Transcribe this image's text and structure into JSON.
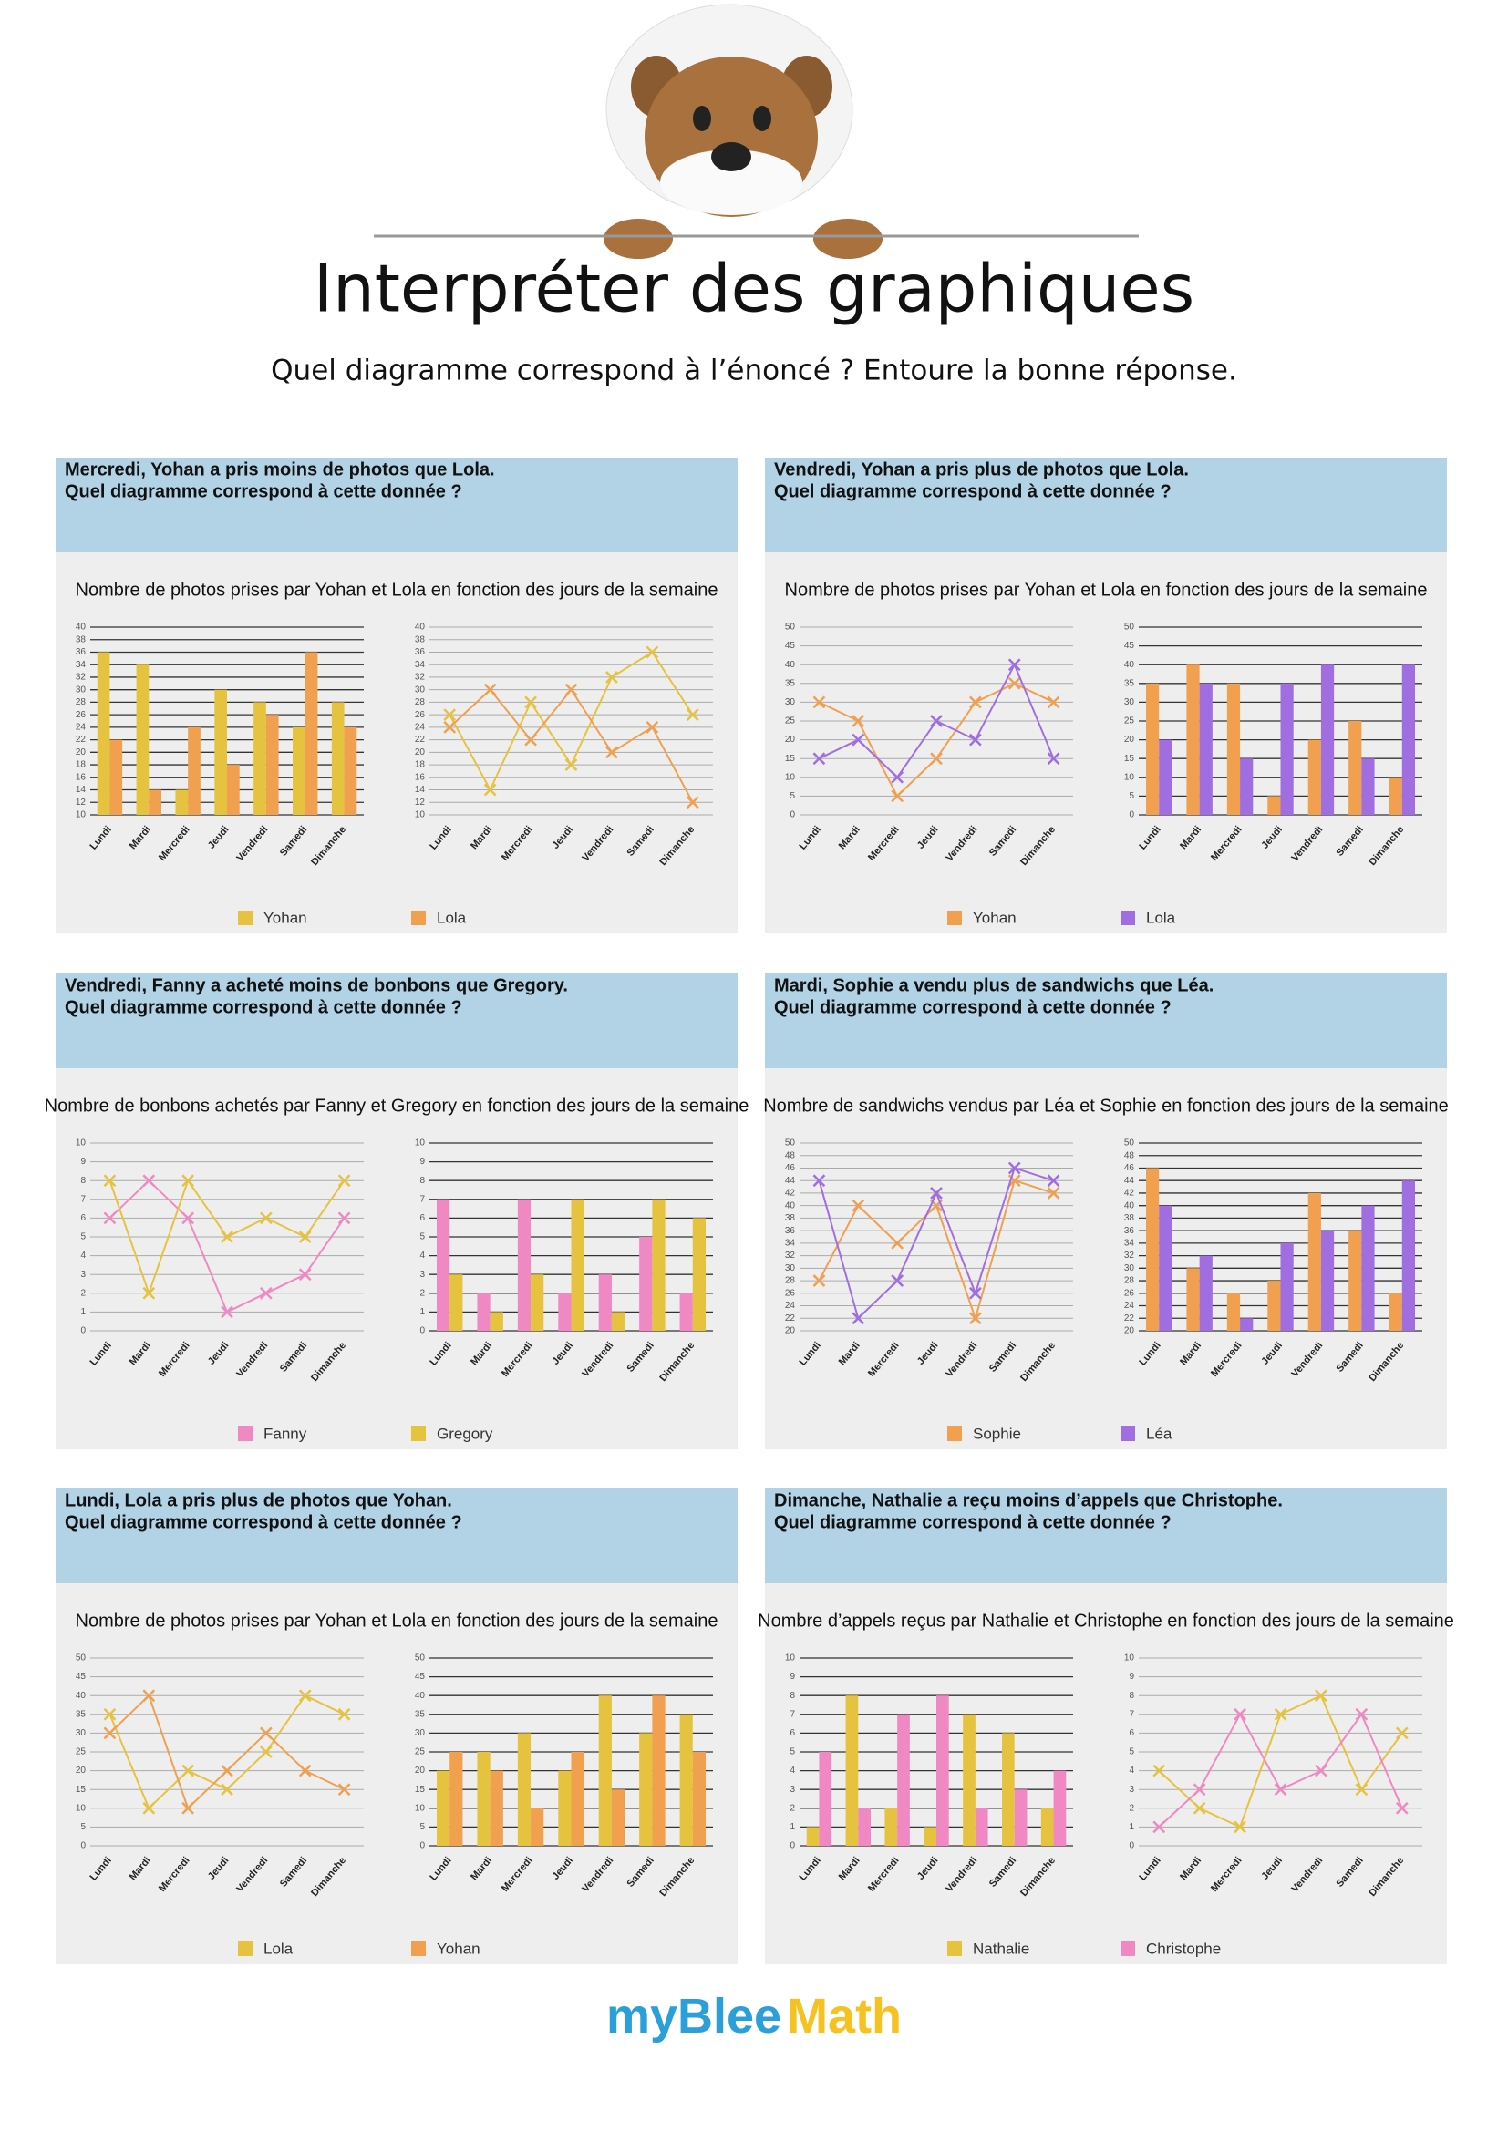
{
  "header": {
    "title": "Interpréter des graphiques",
    "subtitle": "Quel diagramme correspond à l’énoncé ? Entoure la bonne réponse."
  },
  "panels": [
    {
      "statement": [
        "Mercredi, Yohan a pris moins de photos que Lola.",
        "Quel diagramme correspond à cette donnée ?"
      ],
      "chart_title": "Nombre de photos prises par Yohan et Lola en fonction des jours de la semaine",
      "series": [
        {
          "name": "Yohan",
          "color": "#e6c33f"
        },
        {
          "name": "Lola",
          "color": "#f0a04e"
        }
      ],
      "charts": [
        {
          "type": "bar",
          "categories": [
            "Lundi",
            "Mardi",
            "Mercredi",
            "Jeudi",
            "Vendredi",
            "Samedi",
            "Dimanche"
          ],
          "ylim": [
            10,
            40
          ],
          "yticks": [
            10,
            12,
            14,
            16,
            18,
            20,
            22,
            24,
            26,
            28,
            30,
            32,
            34,
            36,
            38,
            40
          ],
          "values": [
            [
              36,
              34,
              14,
              30,
              28,
              24,
              28
            ],
            [
              22,
              14,
              24,
              18,
              26,
              36,
              24
            ]
          ]
        },
        {
          "type": "line",
          "categories": [
            "Lundi",
            "Mardi",
            "Mercredi",
            "Jeudi",
            "Vendredi",
            "Samedi",
            "Dimanche"
          ],
          "ylim": [
            10,
            40
          ],
          "yticks": [
            10,
            12,
            14,
            16,
            18,
            20,
            22,
            24,
            26,
            28,
            30,
            32,
            34,
            36,
            38,
            40
          ],
          "values": [
            [
              26,
              14,
              28,
              18,
              32,
              36,
              26
            ],
            [
              24,
              30,
              22,
              30,
              20,
              24,
              12
            ]
          ]
        }
      ]
    },
    {
      "statement": [
        "Vendredi, Yohan a pris plus de photos que Lola.",
        "Quel diagramme correspond à cette donnée ?"
      ],
      "chart_title": "Nombre de photos prises par Yohan et Lola en fonction des jours de la semaine",
      "series": [
        {
          "name": "Yohan",
          "color": "#f0a04e"
        },
        {
          "name": "Lola",
          "color": "#a06ee0"
        }
      ],
      "charts": [
        {
          "type": "line",
          "categories": [
            "Lundi",
            "Mardi",
            "Mercredi",
            "Jeudi",
            "Vendredi",
            "Samedi",
            "Dimanche"
          ],
          "ylim": [
            0,
            50
          ],
          "yticks": [
            0,
            5,
            10,
            15,
            20,
            25,
            30,
            35,
            40,
            45,
            50
          ],
          "values": [
            [
              30,
              25,
              5,
              15,
              30,
              35,
              30
            ],
            [
              15,
              20,
              10,
              25,
              20,
              40,
              15
            ]
          ]
        },
        {
          "type": "bar",
          "categories": [
            "Lundi",
            "Mardi",
            "Mercredi",
            "Jeudi",
            "Vendredi",
            "Samedi",
            "Dimanche"
          ],
          "ylim": [
            0,
            50
          ],
          "yticks": [
            0,
            5,
            10,
            15,
            20,
            25,
            30,
            35,
            40,
            45,
            50
          ],
          "values": [
            [
              35,
              40,
              35,
              5,
              20,
              25,
              10
            ],
            [
              20,
              35,
              15,
              35,
              40,
              15,
              40
            ]
          ]
        }
      ]
    },
    {
      "statement": [
        "Vendredi, Fanny a acheté moins de bonbons que Gregory.",
        "Quel diagramme correspond à cette donnée ?"
      ],
      "chart_title": "Nombre de bonbons achetés par Fanny et Gregory en fonction des jours de la semaine",
      "series": [
        {
          "name": "Fanny",
          "color": "#f088c4"
        },
        {
          "name": "Gregory",
          "color": "#e6c33f"
        }
      ],
      "charts": [
        {
          "type": "line",
          "categories": [
            "Lundi",
            "Mardi",
            "Mercredi",
            "Jeudi",
            "Vendredi",
            "Samedi",
            "Dimanche"
          ],
          "ylim": [
            0,
            10
          ],
          "yticks": [
            0,
            1,
            2,
            3,
            4,
            5,
            6,
            7,
            8,
            9,
            10
          ],
          "values": [
            [
              6,
              8,
              6,
              1,
              2,
              3,
              6
            ],
            [
              8,
              2,
              8,
              5,
              6,
              5,
              8
            ]
          ]
        },
        {
          "type": "bar",
          "categories": [
            "Lundi",
            "Mardi",
            "Mercredi",
            "Jeudi",
            "Vendredi",
            "Samedi",
            "Dimanche"
          ],
          "ylim": [
            0,
            10
          ],
          "yticks": [
            0,
            1,
            2,
            3,
            4,
            5,
            6,
            7,
            8,
            9,
            10
          ],
          "values": [
            [
              7,
              2,
              7,
              2,
              3,
              5,
              2
            ],
            [
              3,
              1,
              3,
              7,
              1,
              7,
              6
            ]
          ]
        }
      ]
    },
    {
      "statement": [
        "Mardi, Sophie a vendu plus de sandwichs que Léa.",
        "Quel diagramme correspond à cette donnée ?"
      ],
      "chart_title": "Nombre de sandwichs vendus par Léa et Sophie en fonction des jours de la semaine",
      "series": [
        {
          "name": "Sophie",
          "color": "#f0a04e"
        },
        {
          "name": "Léa",
          "color": "#a06ee0"
        }
      ],
      "charts": [
        {
          "type": "line",
          "categories": [
            "Lundi",
            "Mardi",
            "Mercredi",
            "Jeudi",
            "Vendredi",
            "Samedi",
            "Dimanche"
          ],
          "ylim": [
            20,
            50
          ],
          "yticks": [
            20,
            22,
            24,
            26,
            28,
            30,
            32,
            34,
            36,
            38,
            40,
            42,
            44,
            46,
            48,
            50
          ],
          "values": [
            [
              28,
              40,
              34,
              40,
              22,
              44,
              42
            ],
            [
              44,
              22,
              28,
              42,
              26,
              46,
              44
            ]
          ]
        },
        {
          "type": "bar",
          "categories": [
            "Lundi",
            "Mardi",
            "Mercredi",
            "Jeudi",
            "Vendredi",
            "Samedi",
            "Dimanche"
          ],
          "ylim": [
            20,
            50
          ],
          "yticks": [
            20,
            22,
            24,
            26,
            28,
            30,
            32,
            34,
            36,
            38,
            40,
            42,
            44,
            46,
            48,
            50
          ],
          "values": [
            [
              46,
              30,
              26,
              28,
              42,
              36,
              26
            ],
            [
              40,
              32,
              22,
              34,
              36,
              40,
              44
            ]
          ]
        }
      ]
    },
    {
      "statement": [
        "Lundi, Lola a pris plus de photos que Yohan.",
        "Quel diagramme correspond à cette donnée ?"
      ],
      "chart_title": "Nombre de photos prises par Yohan et Lola en fonction des jours de la semaine",
      "series": [
        {
          "name": "Lola",
          "color": "#e6c33f"
        },
        {
          "name": "Yohan",
          "color": "#f0a04e"
        }
      ],
      "charts": [
        {
          "type": "line",
          "categories": [
            "Lundi",
            "Mardi",
            "Mercredi",
            "Jeudi",
            "Vendredi",
            "Samedi",
            "Dimanche"
          ],
          "ylim": [
            0,
            50
          ],
          "yticks": [
            0,
            5,
            10,
            15,
            20,
            25,
            30,
            35,
            40,
            45,
            50
          ],
          "values": [
            [
              35,
              10,
              20,
              15,
              25,
              40,
              35
            ],
            [
              30,
              40,
              10,
              20,
              30,
              20,
              15
            ]
          ]
        },
        {
          "type": "bar",
          "categories": [
            "Lundi",
            "Mardi",
            "Mercredi",
            "Jeudi",
            "Vendredi",
            "Samedi",
            "Dimanche"
          ],
          "ylim": [
            0,
            50
          ],
          "yticks": [
            0,
            5,
            10,
            15,
            20,
            25,
            30,
            35,
            40,
            45,
            50
          ],
          "values": [
            [
              20,
              25,
              30,
              20,
              40,
              30,
              35
            ],
            [
              25,
              20,
              10,
              25,
              15,
              40,
              25
            ]
          ]
        }
      ]
    },
    {
      "statement": [
        "Dimanche, Nathalie a reçu moins d’appels que Christophe.",
        "Quel diagramme correspond à cette donnée ?"
      ],
      "chart_title": "Nombre d’appels reçus par Nathalie et Christophe en fonction des jours de la semaine",
      "series": [
        {
          "name": "Nathalie",
          "color": "#e6c33f"
        },
        {
          "name": "Christophe",
          "color": "#f088c4"
        }
      ],
      "charts": [
        {
          "type": "bar",
          "categories": [
            "Lundi",
            "Mardi",
            "Mercredi",
            "Jeudi",
            "Vendredi",
            "Samedi",
            "Dimanche"
          ],
          "ylim": [
            0,
            10
          ],
          "yticks": [
            0,
            1,
            2,
            3,
            4,
            5,
            6,
            7,
            8,
            9,
            10
          ],
          "values": [
            [
              1,
              8,
              2,
              1,
              7,
              6,
              2
            ],
            [
              5,
              2,
              7,
              8,
              2,
              3,
              4
            ]
          ]
        },
        {
          "type": "line",
          "categories": [
            "Lundi",
            "Mardi",
            "Mercredi",
            "Jeudi",
            "Vendredi",
            "Samedi",
            "Dimanche"
          ],
          "ylim": [
            0,
            10
          ],
          "yticks": [
            0,
            1,
            2,
            3,
            4,
            5,
            6,
            7,
            8,
            9,
            10
          ],
          "values": [
            [
              4,
              2,
              1,
              7,
              8,
              3,
              6
            ],
            [
              1,
              3,
              7,
              3,
              4,
              7,
              2
            ]
          ]
        }
      ]
    }
  ],
  "logo": {
    "part1": "myBlee",
    "part2": "Math"
  }
}
